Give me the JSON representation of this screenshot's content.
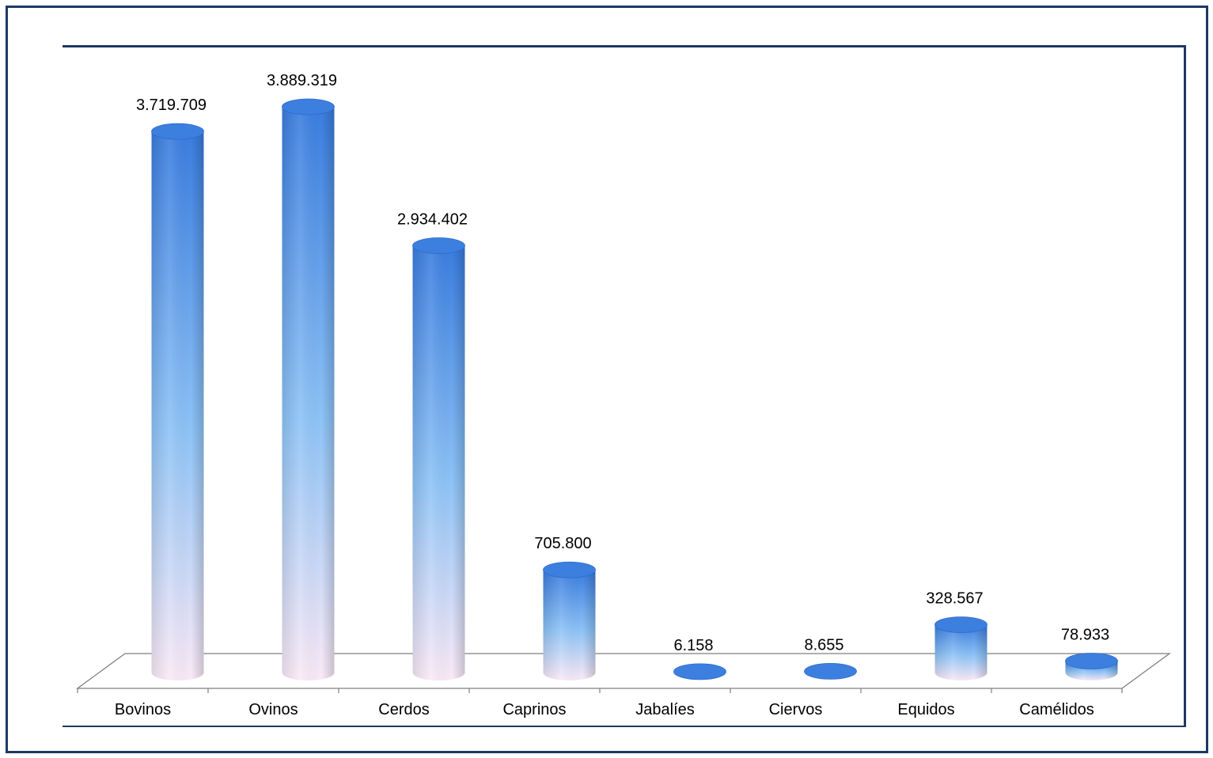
{
  "chart_data": {
    "type": "bar",
    "style": "3d-cylinder",
    "categories": [
      "Bovinos",
      "Ovinos",
      "Cerdos",
      "Caprinos",
      "Jabalíes",
      "Ciervos",
      "Equidos",
      "Camélidos"
    ],
    "values": [
      3719709,
      3889319,
      2934402,
      705800,
      6158,
      8655,
      328567,
      78933
    ],
    "data_labels": [
      "3.719.709",
      "3.889.319",
      "2.934.402",
      "705.800",
      "6.158",
      "8.655",
      "328.567",
      "78.933"
    ],
    "title": "",
    "xlabel": "",
    "ylabel": "",
    "ylim": [
      0,
      4000000
    ],
    "grid": false,
    "legend": "none",
    "colors": {
      "bar_top": "#3a7de0",
      "bar_mid": "#8fc4f7",
      "bar_bottom": "#fbeaf7",
      "frame": "#1f3864",
      "floor": "#7f7f7f",
      "text": "#000000"
    }
  }
}
